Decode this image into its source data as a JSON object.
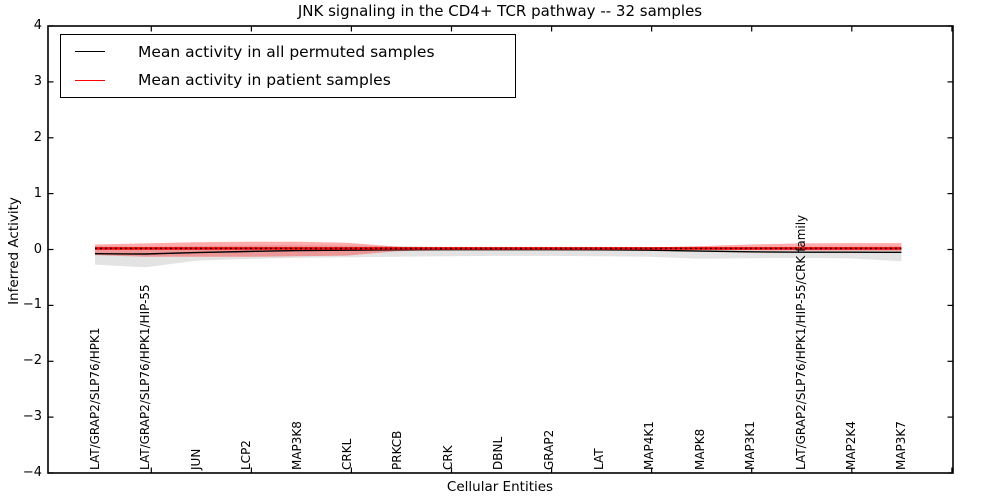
{
  "chart_data": {
    "type": "line",
    "title": "JNK signaling in the CD4+ TCR pathway -- 32 samples",
    "xlabel": "Cellular Entities",
    "ylabel": "Inferred Activity",
    "ylim": [
      -4,
      4
    ],
    "ytick_labels": [
      "4",
      "3",
      "2",
      "1",
      "0",
      "−1",
      "−2",
      "−3",
      "−4"
    ],
    "ytick_values": [
      4,
      3,
      2,
      1,
      0,
      -1,
      -2,
      -3,
      -4
    ],
    "grid": false,
    "legend_position": "upper left",
    "categories": [
      "LAT/GRAP2/SLP76/HPK1",
      "LAT/GRAP2/SLP76/HPK1/HIP-55",
      "JUN",
      "LCP2",
      "MAP3K8",
      "CRKL",
      "PRKCB",
      "CRK",
      "DBNL",
      "GRAP2",
      "LAT",
      "MAP4K1",
      "MAPK8",
      "MAP3K1",
      "LAT/GRAP2/SLP76/HPK1/HIP-55/CRK family",
      "MAP2K4",
      "MAP3K7"
    ],
    "series": [
      {
        "name": "Mean activity in all permuted samples",
        "color": "#000000",
        "style": "solid",
        "width": 1.4,
        "values": [
          -0.075,
          -0.08,
          -0.055,
          -0.035,
          -0.02,
          -0.012,
          -0.006,
          -0.004,
          -0.004,
          -0.004,
          -0.006,
          -0.012,
          -0.028,
          -0.042,
          -0.048,
          -0.048,
          -0.05
        ]
      },
      {
        "name": "Mean activity in patient samples",
        "color": "#ff0000",
        "style": "solid",
        "width": 2.6,
        "values": [
          0.02,
          0.02,
          0.02,
          0.02,
          0.02,
          0.02,
          0.02,
          0.02,
          0.02,
          0.02,
          0.02,
          0.02,
          0.02,
          0.02,
          0.02,
          0.02,
          0.02
        ]
      },
      {
        "name": "dotted-overlay-on-patient-mean",
        "color": "#000000",
        "style": "dotted",
        "width": 1.6,
        "in_legend": false,
        "values": [
          0.02,
          0.02,
          0.02,
          0.02,
          0.02,
          0.02,
          0.02,
          0.02,
          0.02,
          0.02,
          0.02,
          0.02,
          0.02,
          0.02,
          0.02,
          0.02,
          0.02
        ]
      }
    ],
    "bands": [
      {
        "name": "permuted-samples-range",
        "fill": "rgba(0,0,0,0.11)",
        "upper": [
          0.06,
          0.05,
          0.06,
          0.07,
          0.075,
          0.07,
          0.06,
          0.05,
          0.05,
          0.05,
          0.05,
          0.045,
          0.04,
          0.045,
          0.05,
          0.05,
          0.06
        ],
        "lower": [
          -0.27,
          -0.32,
          -0.2,
          -0.17,
          -0.15,
          -0.14,
          -0.13,
          -0.12,
          -0.115,
          -0.115,
          -0.12,
          -0.13,
          -0.165,
          -0.155,
          -0.15,
          -0.16,
          -0.21
        ]
      },
      {
        "name": "patient-samples-range",
        "fill": "rgba(255,0,0,0.33)",
        "upper": [
          0.09,
          0.11,
          0.13,
          0.14,
          0.14,
          0.12,
          0.05,
          0.028,
          0.028,
          0.028,
          0.03,
          0.035,
          0.06,
          0.09,
          0.11,
          0.115,
          0.115
        ],
        "lower": [
          -0.1,
          -0.13,
          -0.13,
          -0.13,
          -0.12,
          -0.11,
          -0.03,
          -0.005,
          0.0,
          0.0,
          0.0,
          -0.005,
          -0.01,
          -0.015,
          -0.02,
          -0.02,
          -0.025
        ]
      }
    ]
  },
  "legend": {
    "entries": [
      {
        "label": "Mean activity in all permuted samples",
        "color": "#000000"
      },
      {
        "label": "Mean activity in patient samples",
        "color": "#ff0000"
      }
    ]
  }
}
